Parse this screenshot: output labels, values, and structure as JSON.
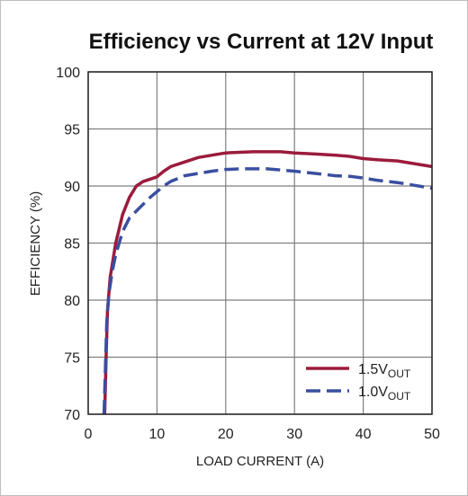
{
  "chart_data": {
    "type": "line",
    "title": "Efficiency vs Current at 12V Input",
    "xlabel": "LOAD CURRENT (A)",
    "ylabel": "EFFICIENCY (%)",
    "xlim": [
      0,
      50
    ],
    "ylim": [
      70,
      100
    ],
    "xticks": [
      0,
      10,
      20,
      30,
      40,
      50
    ],
    "yticks": [
      70,
      75,
      80,
      85,
      90,
      95,
      100
    ],
    "grid": true,
    "legend_position": "bottom-right",
    "series": [
      {
        "name": "1.5V",
        "name_sub": "OUT",
        "color": "#9b1b3c",
        "dash": "solid",
        "points": [
          [
            2.4,
            70
          ],
          [
            2.6,
            75
          ],
          [
            2.8,
            79
          ],
          [
            3.2,
            82
          ],
          [
            4,
            85
          ],
          [
            5,
            87.5
          ],
          [
            6,
            89
          ],
          [
            7,
            90
          ],
          [
            8,
            90.4
          ],
          [
            9,
            90.6
          ],
          [
            10,
            90.8
          ],
          [
            11,
            91.3
          ],
          [
            12,
            91.7
          ],
          [
            14,
            92.1
          ],
          [
            16,
            92.5
          ],
          [
            18,
            92.7
          ],
          [
            20,
            92.9
          ],
          [
            22,
            92.95
          ],
          [
            24,
            93
          ],
          [
            26,
            93
          ],
          [
            28,
            93
          ],
          [
            30,
            92.9
          ],
          [
            33,
            92.8
          ],
          [
            36,
            92.7
          ],
          [
            38,
            92.6
          ],
          [
            40,
            92.4
          ],
          [
            42,
            92.3
          ],
          [
            45,
            92.2
          ],
          [
            47,
            92
          ],
          [
            50,
            91.7
          ]
        ]
      },
      {
        "name": "1.0V",
        "name_sub": "OUT",
        "color": "#3a4fa0",
        "dash": "dashed",
        "points": [
          [
            2.3,
            70
          ],
          [
            2.5,
            74
          ],
          [
            2.7,
            78
          ],
          [
            3,
            80.5
          ],
          [
            3.5,
            82.5
          ],
          [
            4,
            84
          ],
          [
            5,
            86
          ],
          [
            6,
            87.2
          ],
          [
            7,
            87.8
          ],
          [
            8,
            88.4
          ],
          [
            9,
            89
          ],
          [
            10,
            89.5
          ],
          [
            11,
            90
          ],
          [
            12,
            90.4
          ],
          [
            14,
            90.9
          ],
          [
            16,
            91.1
          ],
          [
            18,
            91.3
          ],
          [
            20,
            91.45
          ],
          [
            22,
            91.5
          ],
          [
            24,
            91.5
          ],
          [
            26,
            91.5
          ],
          [
            28,
            91.4
          ],
          [
            30,
            91.3
          ],
          [
            33,
            91.1
          ],
          [
            36,
            90.9
          ],
          [
            38,
            90.85
          ],
          [
            40,
            90.7
          ],
          [
            42,
            90.5
          ],
          [
            45,
            90.3
          ],
          [
            47,
            90.1
          ],
          [
            50,
            89.8
          ]
        ]
      }
    ]
  }
}
